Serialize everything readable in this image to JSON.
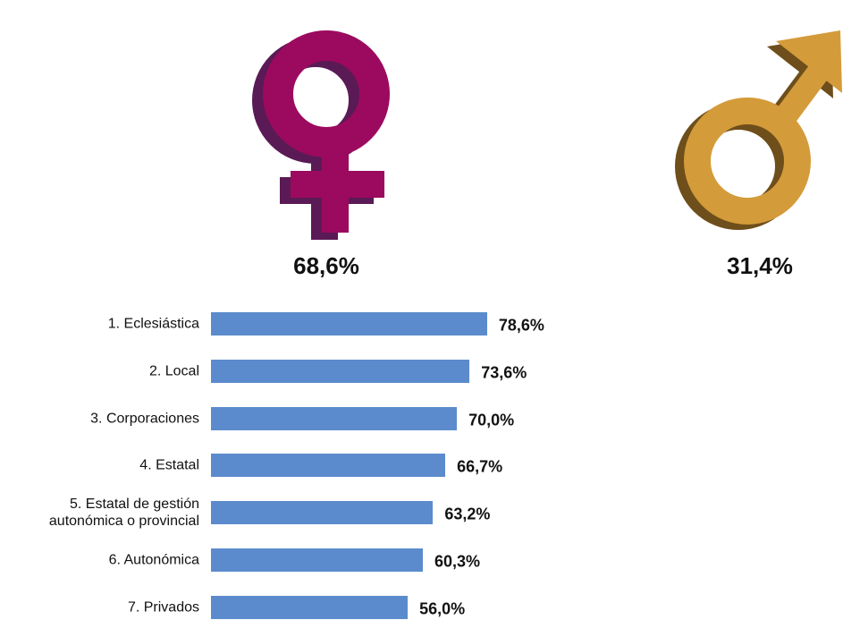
{
  "chart_data": {
    "type": "bar",
    "gender": {
      "values": [
        68.6,
        31.4
      ],
      "value_labels": [
        "68,6%",
        "31,4%"
      ],
      "colors": [
        "#9b0a5e",
        "#d49b3a"
      ]
    },
    "categories": [
      "1. Eclesiástica",
      "2. Local",
      "3. Corporaciones",
      "4. Estatal",
      "5. Estatal de gestión\nautonómica o provincial",
      "6. Autonómica",
      "7. Privados"
    ],
    "values": [
      78.6,
      73.6,
      70.0,
      66.7,
      63.2,
      60.3,
      56.0
    ],
    "value_labels": [
      "78,6%",
      "73,6%",
      "70,0%",
      "66,7%",
      "63,2%",
      "60,3%",
      "56,0%"
    ],
    "color": "#5b8bcc"
  }
}
